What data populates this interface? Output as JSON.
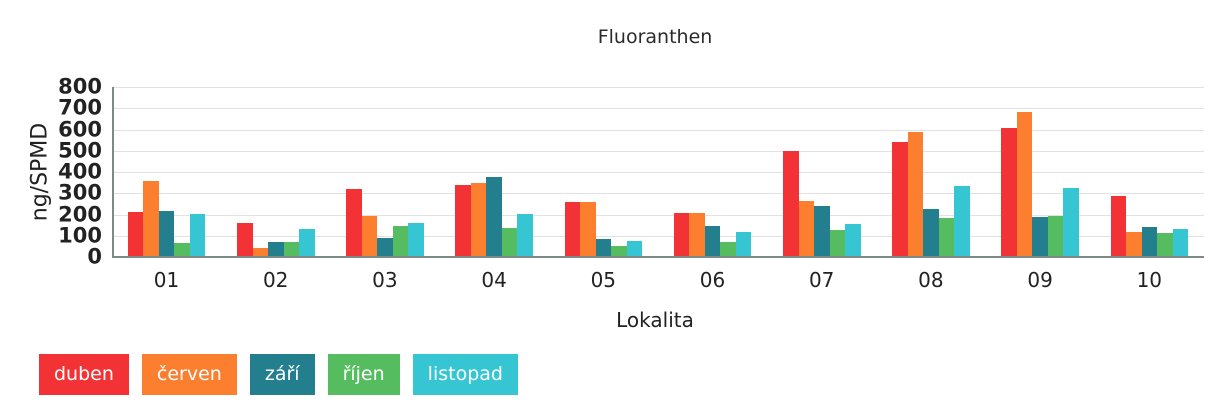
{
  "chart_data": {
    "type": "bar",
    "title": "Fluoranthen",
    "xlabel": "Lokalita",
    "ylabel": "ng/SPMD",
    "ylim": [
      0,
      800
    ],
    "yticks": [
      0,
      100,
      200,
      300,
      400,
      500,
      600,
      700,
      800
    ],
    "grid": true,
    "legend_position": "bottom-left",
    "categories": [
      "01",
      "02",
      "03",
      "04",
      "05",
      "06",
      "07",
      "08",
      "09",
      "10"
    ],
    "series": [
      {
        "name": "duben",
        "color": "#f23235",
        "values": [
          210,
          159,
          319,
          340,
          259,
          206,
          497,
          540,
          608,
          287
        ]
      },
      {
        "name": "červen",
        "color": "#fc7f30",
        "values": [
          359,
          42,
          194,
          347,
          259,
          206,
          265,
          590,
          684,
          119
        ]
      },
      {
        "name": "září",
        "color": "#237f8e",
        "values": [
          216,
          71,
          88,
          376,
          83,
          147,
          241,
          224,
          188,
          143
        ]
      },
      {
        "name": "říjen",
        "color": "#55bd5f",
        "values": [
          66,
          71,
          147,
          135,
          50,
          71,
          125,
          182,
          194,
          112
        ]
      },
      {
        "name": "listopad",
        "color": "#36c6d3",
        "values": [
          201,
          130,
          159,
          201,
          77,
          119,
          154,
          334,
          323,
          130
        ]
      }
    ]
  }
}
